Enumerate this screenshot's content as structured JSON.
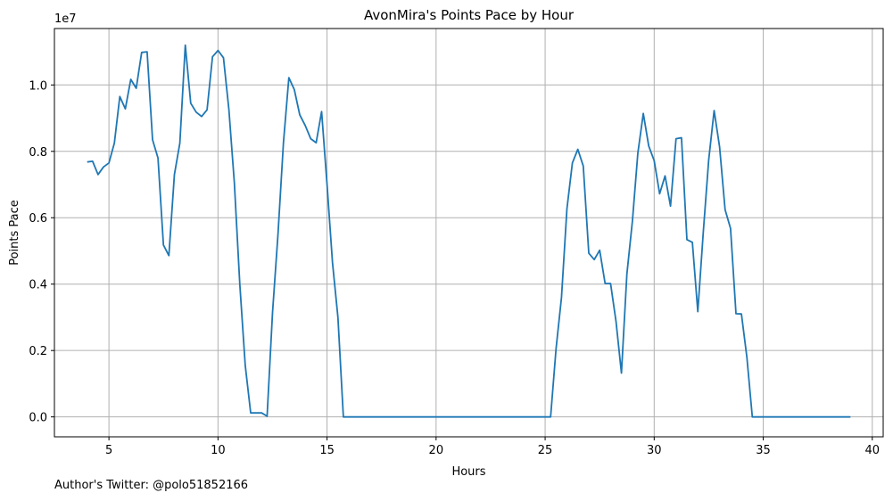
{
  "chart_data": {
    "type": "line",
    "title": "AvonMira's Points Pace by Hour",
    "xlabel": "Hours",
    "ylabel": "Points Pace",
    "y_offset_label": "1e7",
    "xlim": [
      2.5,
      40.5
    ],
    "ylim": [
      -600000,
      11700000
    ],
    "xticks": [
      5,
      10,
      15,
      20,
      25,
      30,
      35,
      40
    ],
    "xtick_labels": [
      "5",
      "10",
      "15",
      "20",
      "25",
      "30",
      "35",
      "40"
    ],
    "yticks": [
      0,
      2000000,
      4000000,
      6000000,
      8000000,
      10000000
    ],
    "ytick_labels": [
      "0.0",
      "0.2",
      "0.4",
      "0.6",
      "0.8",
      "1.0"
    ],
    "grid": true,
    "line_color": "#1f77b4",
    "series": [
      {
        "x": [
          4.0,
          4.25,
          4.5,
          4.75,
          5.0,
          5.25,
          5.5,
          5.75,
          6.0,
          6.25,
          6.5,
          6.75,
          7.0,
          7.25,
          7.5,
          7.75,
          8.0,
          8.25,
          8.5,
          8.75,
          9.0,
          9.25,
          9.5,
          9.75,
          10.0,
          10.25,
          10.5,
          10.75,
          11.0,
          11.25,
          11.5,
          11.75,
          12.0,
          12.25,
          12.5,
          12.75,
          13.0,
          13.25,
          13.5,
          13.75,
          14.0,
          14.25,
          14.5,
          14.75,
          15.0,
          15.25,
          15.5,
          15.75,
          16.0,
          16.25,
          16.5,
          16.75,
          17.0,
          17.25,
          17.5,
          17.75,
          18.0,
          18.25,
          18.5,
          18.75,
          19.0,
          19.25,
          19.5,
          19.75,
          20.0,
          20.25,
          20.5,
          20.75,
          21.0,
          21.25,
          21.5,
          21.75,
          22.0,
          22.25,
          22.5,
          22.75,
          23.0,
          23.25,
          23.5,
          23.75,
          24.0,
          24.25,
          24.5,
          24.75,
          25.0,
          25.25,
          25.5,
          25.75,
          26.0,
          26.25,
          26.5,
          26.75,
          27.0,
          27.25,
          27.5,
          27.75,
          28.0,
          28.25,
          28.5,
          28.75,
          29.0,
          29.25,
          29.5,
          29.75,
          30.0,
          30.25,
          30.5,
          30.75,
          31.0,
          31.25,
          31.5,
          31.75,
          32.0,
          32.25,
          32.5,
          32.75,
          33.0,
          33.25,
          33.5,
          33.75,
          34.0,
          34.25,
          34.5,
          34.75,
          35.0,
          35.25,
          35.5,
          35.75,
          36.0,
          36.25,
          36.5,
          36.75,
          37.0,
          37.25,
          37.5,
          37.75,
          38.0,
          38.25,
          38.5,
          38.75,
          39.0
        ],
        "y": [
          7680000,
          7700000,
          7300000,
          7530000,
          7650000,
          8250000,
          9650000,
          9280000,
          10170000,
          9900000,
          10980000,
          11000000,
          8350000,
          7800000,
          5180000,
          4860000,
          7300000,
          8250000,
          11200000,
          9450000,
          9180000,
          9050000,
          9250000,
          10850000,
          11040000,
          10820000,
          9250000,
          7050000,
          4000000,
          1550000,
          120000,
          120000,
          120000,
          20000,
          3150000,
          5500000,
          8250000,
          10220000,
          9860000,
          9100000,
          8780000,
          8380000,
          8260000,
          9200000,
          7000000,
          4650000,
          3000000,
          0,
          0,
          0,
          0,
          0,
          0,
          0,
          0,
          0,
          0,
          0,
          0,
          0,
          0,
          0,
          0,
          0,
          0,
          0,
          0,
          0,
          0,
          0,
          0,
          0,
          0,
          0,
          0,
          0,
          0,
          0,
          0,
          0,
          0,
          0,
          0,
          0,
          0,
          0,
          2050000,
          3600000,
          6270000,
          7650000,
          8060000,
          7560000,
          4930000,
          4740000,
          5020000,
          4020000,
          4020000,
          2880000,
          1320000,
          4300000,
          5900000,
          7950000,
          9140000,
          8160000,
          7720000,
          6720000,
          7260000,
          6350000,
          8380000,
          8410000,
          5340000,
          5260000,
          3170000,
          5550000,
          7740000,
          9230000,
          8140000,
          6240000,
          5680000,
          3110000,
          3100000,
          1800000,
          0,
          0,
          0,
          0,
          0,
          0,
          0,
          0,
          0,
          0,
          0,
          0,
          0,
          0,
          0,
          0,
          0,
          0,
          0
        ]
      }
    ]
  },
  "footer_text": "Author's Twitter: @polo51852166"
}
